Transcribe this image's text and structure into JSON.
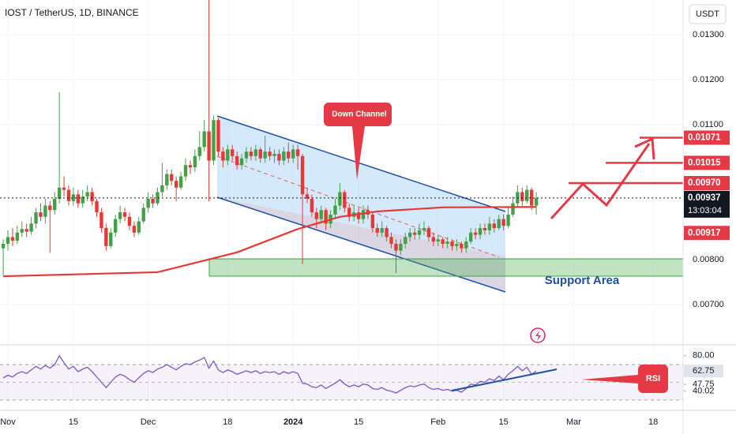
{
  "chart_data": {
    "type": "candlestick",
    "title": "IOST / TetherUS, 1D, BINANCE",
    "currency": "USDT",
    "up_color": "#43a047",
    "down_color": "#e53935",
    "open": [
      0.00825,
      0.00835,
      0.0085,
      0.00842,
      0.0086,
      0.00868,
      0.00862,
      0.0088,
      0.00905,
      0.00895,
      0.0092,
      0.0091,
      0.00935,
      0.0096,
      0.00955,
      0.0093,
      0.00945,
      0.00925,
      0.0094,
      0.0095,
      0.0093,
      0.00905,
      0.0087,
      0.0083,
      0.0086,
      0.0089,
      0.00905,
      0.00895,
      0.00875,
      0.0086,
      0.00885,
      0.00915,
      0.00935,
      0.00925,
      0.0095,
      0.00965,
      0.0099,
      0.00975,
      0.0096,
      0.00985,
      0.0101,
      0.01005,
      0.0103,
      0.0105,
      0.01085,
      0.0102,
      0.0111,
      0.0104,
      0.0102,
      0.01045,
      0.0103,
      0.0101,
      0.01025,
      0.0104,
      0.0103,
      0.01045,
      0.01025,
      0.0104,
      0.0103,
      0.01035,
      0.0102,
      0.0104,
      0.01025,
      0.01045,
      0.0103,
      0.00945,
      0.00935,
      0.00905,
      0.0089,
      0.0091,
      0.0088,
      0.009,
      0.0092,
      0.0095,
      0.00915,
      0.00895,
      0.00905,
      0.0089,
      0.0091,
      0.009,
      0.0087,
      0.0086,
      0.0087,
      0.0085,
      0.00835,
      0.0082,
      0.00835,
      0.0085,
      0.0086,
      0.00855,
      0.00865,
      0.0087,
      0.0085,
      0.0084,
      0.00845,
      0.00835,
      0.0084,
      0.0083,
      0.00835,
      0.00825,
      0.0084,
      0.0086,
      0.00855,
      0.0087,
      0.00865,
      0.0088,
      0.0087,
      0.0089,
      0.00875,
      0.009,
      0.00925,
      0.0095,
      0.0093,
      0.00955,
      0.0092
    ],
    "high": [
      0.00845,
      0.00865,
      0.0087,
      0.00875,
      0.00885,
      0.0088,
      0.00895,
      0.00915,
      0.00925,
      0.00935,
      0.0093,
      0.0095,
      0.01172,
      0.00985,
      0.00965,
      0.0096,
      0.00955,
      0.00955,
      0.00965,
      0.0096,
      0.00935,
      0.00915,
      0.0088,
      0.0087,
      0.009,
      0.0092,
      0.00915,
      0.00905,
      0.00885,
      0.00895,
      0.00925,
      0.0095,
      0.00945,
      0.0096,
      0.01015,
      0.01,
      0.01,
      0.00985,
      0.00995,
      0.01025,
      0.0102,
      0.01045,
      0.01085,
      0.0111,
      0.0138,
      0.0112,
      0.01115,
      0.0105,
      0.01055,
      0.01055,
      0.0104,
      0.01035,
      0.0105,
      0.0105,
      0.01055,
      0.0105,
      0.01075,
      0.0105,
      0.01045,
      0.01045,
      0.0105,
      0.0106,
      0.01055,
      0.01055,
      0.01035,
      0.0096,
      0.00945,
      0.00915,
      0.0092,
      0.00915,
      0.0091,
      0.00935,
      0.0097,
      0.00955,
      0.00925,
      0.0092,
      0.00915,
      0.0092,
      0.0092,
      0.00905,
      0.0088,
      0.00885,
      0.00875,
      0.0086,
      0.00845,
      0.00845,
      0.0086,
      0.0087,
      0.0087,
      0.0088,
      0.00885,
      0.00875,
      0.0086,
      0.00855,
      0.0085,
      0.0085,
      0.00845,
      0.00845,
      0.0084,
      0.0085,
      0.0087,
      0.0087,
      0.0088,
      0.0088,
      0.00895,
      0.0089,
      0.009,
      0.009,
      0.00915,
      0.0094,
      0.00965,
      0.0096,
      0.00965,
      0.0096,
      0.0095
    ],
    "low": [
      0.00765,
      0.0082,
      0.0083,
      0.00835,
      0.0085,
      0.0085,
      0.00855,
      0.0087,
      0.00885,
      0.0088,
      0.00815,
      0.009,
      0.00925,
      0.0094,
      0.0092,
      0.0092,
      0.00915,
      0.00915,
      0.0093,
      0.0092,
      0.00895,
      0.0086,
      0.0082,
      0.00825,
      0.0085,
      0.0088,
      0.00885,
      0.00865,
      0.0085,
      0.00855,
      0.0088,
      0.00905,
      0.00915,
      0.0092,
      0.0094,
      0.00955,
      0.00965,
      0.0093,
      0.00955,
      0.00975,
      0.0099,
      0.00995,
      0.0102,
      0.0104,
      0.0093,
      0.0101,
      0.0103,
      0.01005,
      0.0101,
      0.0102,
      0.01,
      0.01,
      0.01015,
      0.0102,
      0.0102,
      0.01015,
      0.01015,
      0.0102,
      0.01015,
      0.0101,
      0.0101,
      0.01015,
      0.01015,
      0.01,
      0.0079,
      0.00925,
      0.00895,
      0.0087,
      0.0088,
      0.00865,
      0.0087,
      0.0089,
      0.0091,
      0.00905,
      0.00885,
      0.00885,
      0.0088,
      0.0088,
      0.0089,
      0.0086,
      0.0085,
      0.0085,
      0.0084,
      0.00825,
      0.0077,
      0.0081,
      0.00825,
      0.0084,
      0.00845,
      0.00845,
      0.00855,
      0.0084,
      0.0083,
      0.0083,
      0.00825,
      0.00825,
      0.0082,
      0.0082,
      0.00815,
      0.00815,
      0.00835,
      0.00845,
      0.00845,
      0.00855,
      0.00855,
      0.0086,
      0.00865,
      0.00865,
      0.0087,
      0.00895,
      0.00915,
      0.0092,
      0.00925,
      0.0091,
      0.009
    ],
    "close": [
      0.00835,
      0.0085,
      0.00842,
      0.0086,
      0.00868,
      0.00862,
      0.0088,
      0.00905,
      0.00895,
      0.0092,
      0.0091,
      0.00935,
      0.0096,
      0.00955,
      0.0093,
      0.00945,
      0.00925,
      0.0094,
      0.0095,
      0.0093,
      0.00905,
      0.0087,
      0.0083,
      0.0086,
      0.0089,
      0.00905,
      0.00895,
      0.00875,
      0.0086,
      0.00885,
      0.00915,
      0.00935,
      0.00925,
      0.0095,
      0.00965,
      0.0099,
      0.00975,
      0.0096,
      0.00985,
      0.0101,
      0.01005,
      0.0103,
      0.0105,
      0.01085,
      0.0102,
      0.0111,
      0.0104,
      0.0102,
      0.01045,
      0.0103,
      0.0101,
      0.01025,
      0.0104,
      0.0103,
      0.01045,
      0.01025,
      0.0104,
      0.0103,
      0.01035,
      0.0102,
      0.0104,
      0.01025,
      0.01045,
      0.0103,
      0.00945,
      0.00935,
      0.00905,
      0.0089,
      0.0091,
      0.0088,
      0.009,
      0.0092,
      0.0095,
      0.00915,
      0.00895,
      0.00905,
      0.0089,
      0.0091,
      0.009,
      0.0087,
      0.0086,
      0.0087,
      0.0085,
      0.00835,
      0.0082,
      0.00835,
      0.0085,
      0.0086,
      0.00855,
      0.00865,
      0.0087,
      0.0085,
      0.0084,
      0.00845,
      0.00835,
      0.0084,
      0.0083,
      0.00835,
      0.00825,
      0.0084,
      0.0086,
      0.00855,
      0.0087,
      0.00865,
      0.0088,
      0.0087,
      0.0089,
      0.00875,
      0.009,
      0.00925,
      0.0095,
      0.0093,
      0.00955,
      0.0092,
      0.00937
    ],
    "xlim": [
      -0.69,
      145.4
    ],
    "xticks": [
      {
        "value": 1,
        "label": "Nov"
      },
      {
        "value": 15,
        "label": "15"
      },
      {
        "value": 31,
        "label": "Dec"
      },
      {
        "value": 48,
        "label": "18"
      },
      {
        "value": 62,
        "label": "2024"
      },
      {
        "value": 76,
        "label": "15"
      },
      {
        "value": 93,
        "label": "Feb"
      },
      {
        "value": 107,
        "label": "15"
      },
      {
        "value": 122,
        "label": "Mar"
      },
      {
        "value": 139,
        "label": "18"
      }
    ],
    "ylim": [
      0.00614,
      0.01377
    ],
    "yticks": [
      {
        "value": 0.013,
        "label": "0.01300"
      },
      {
        "value": 0.012,
        "label": "0.01200"
      },
      {
        "value": 0.011,
        "label": "0.01100"
      },
      {
        "value": 0.008,
        "label": "0.00800"
      },
      {
        "value": 0.007,
        "label": "0.00700"
      }
    ],
    "moving_average": {
      "color": "#e53935",
      "x": [
        0,
        33,
        50,
        63,
        72,
        80,
        94,
        114
      ],
      "values": [
        0.00763,
        0.00772,
        0.00816,
        0.00868,
        0.00895,
        0.00907,
        0.00916,
        0.00917
      ]
    },
    "last_price": 0.00937,
    "countdown": "13:03:04",
    "ma_label": 0.00917,
    "levels": [
      {
        "value": 0.0097,
        "label": "0.00970"
      },
      0.01015,
      0.01071
    ],
    "annotations": [
      "Down Channel",
      "Support Area",
      "RSI"
    ],
    "rsi": {
      "color": "#7e57c2",
      "values": [
        55,
        58,
        56,
        60,
        62,
        60,
        64,
        68,
        65,
        69,
        66,
        70,
        80,
        72,
        65,
        68,
        62,
        65,
        67,
        62,
        56,
        50,
        44,
        50,
        56,
        59,
        57,
        53,
        50,
        55,
        60,
        63,
        61,
        65,
        67,
        70,
        67,
        64,
        68,
        71,
        70,
        73,
        75,
        78,
        66,
        74,
        64,
        61,
        64,
        62,
        59,
        61,
        63,
        61,
        63,
        60,
        62,
        61,
        62,
        59,
        62,
        60,
        62,
        60,
        49,
        48,
        45,
        44,
        47,
        43,
        46,
        49,
        53,
        48,
        45,
        47,
        45,
        48,
        47,
        43,
        42,
        44,
        41,
        40,
        38,
        41,
        44,
        46,
        45,
        47,
        48,
        44,
        42,
        43,
        41,
        42,
        40,
        41,
        39,
        43,
        48,
        47,
        51,
        50,
        54,
        52,
        57,
        53,
        59,
        63,
        68,
        63,
        67,
        59,
        62.75
      ],
      "ylim": [
        18.4,
        89.6
      ],
      "yticks": [
        {
          "value": 80,
          "label": "80.00"
        },
        47.75,
        40.02
      ]
    }
  }
}
